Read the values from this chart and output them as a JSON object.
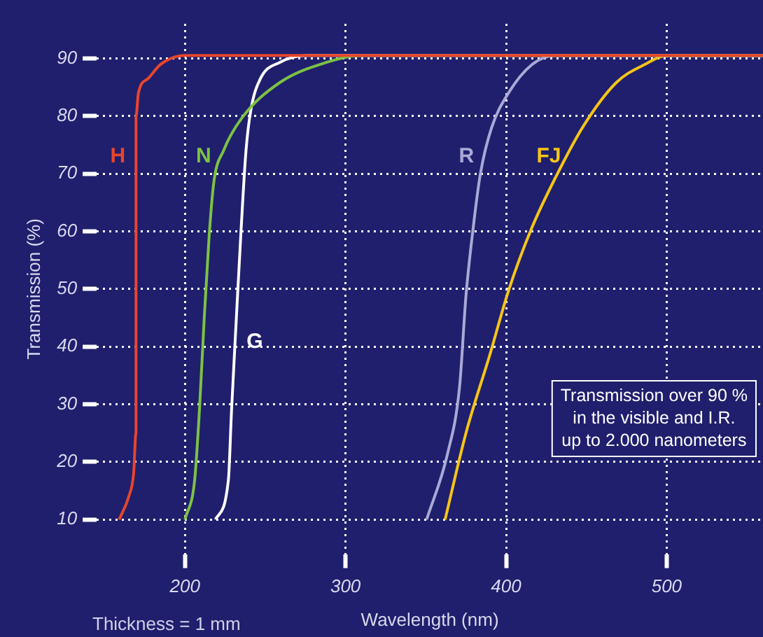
{
  "chart_data": {
    "type": "line",
    "xlabel": "Wavelength (nm)",
    "ylabel": "Transmission (%)",
    "xlim": [
      145,
      560
    ],
    "ylim": [
      4,
      96
    ],
    "xticks": [
      200,
      300,
      400,
      500
    ],
    "yticks": [
      10,
      20,
      30,
      40,
      50,
      60,
      70,
      80,
      90
    ],
    "grid": true,
    "legend": false,
    "marker": "none",
    "line_style": "solid",
    "series": [
      {
        "name": "H",
        "color": "#e8452c",
        "x": [
          159,
          165,
          168,
          169.5,
          169.5,
          171,
          177,
          185,
          200,
          560
        ],
        "values": [
          10,
          14,
          18,
          25,
          80,
          84,
          86.5,
          89,
          90.5,
          90.5
        ]
      },
      {
        "name": "N",
        "color": "#7cc243",
        "x": [
          200,
          206,
          209,
          212,
          215,
          218,
          224,
          235,
          259,
          288,
          310,
          560
        ],
        "values": [
          10,
          16.8,
          29,
          45,
          59,
          68.6,
          74,
          79.5,
          85.8,
          89.3,
          90.5,
          90.5
        ]
      },
      {
        "name": "G",
        "color": "#ffffff",
        "x": [
          219,
          227,
          229,
          232,
          235,
          238,
          241,
          247,
          259,
          276,
          560
        ],
        "values": [
          10,
          16.8,
          29,
          45,
          60.6,
          74,
          81,
          86.5,
          89.3,
          90.5,
          90.5
        ]
      },
      {
        "name": "R",
        "color": "#a9a9d6",
        "x": [
          350.5,
          363.6,
          371,
          375,
          379.5,
          384,
          391,
          401.5,
          416,
          430.7,
          560
        ],
        "values": [
          10,
          21.5,
          33,
          48.8,
          60.6,
          70,
          78,
          84,
          88.9,
          90.5,
          90.5
        ]
      },
      {
        "name": "FJ",
        "color": "#f5c518",
        "x": [
          362,
          375,
          390,
          401.5,
          416,
          430.7,
          448,
          468.6,
          486,
          500.6,
          560
        ],
        "values": [
          10,
          25,
          38.7,
          49.7,
          60.6,
          69.3,
          78.2,
          85.8,
          88.9,
          90.5,
          90.5
        ]
      }
    ],
    "annotations": [
      "Transmission over 90 %\nin the visible and I.R.\nup to 2.000 nanometers",
      "Thickness = 1 mm"
    ]
  }
}
